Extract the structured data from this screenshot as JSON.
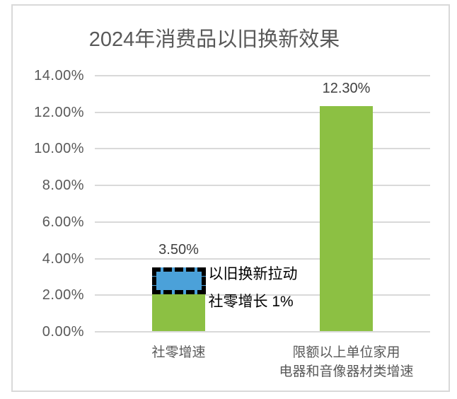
{
  "window": {
    "background": "#ffffff",
    "frame_border_color": "#d9d9d9"
  },
  "chart_data": {
    "type": "bar",
    "title": "2024年消费品以旧换新效果",
    "categories": [
      "社零增速",
      "限额以上单位家用电器和音像器材类增速"
    ],
    "category_lines": [
      [
        "社零增速"
      ],
      [
        "限额以上单位家用",
        "电器和音像器材类增速"
      ]
    ],
    "values": [
      3.5,
      12.3
    ],
    "data_labels": [
      "3.50%",
      "12.30%"
    ],
    "xlabel": "",
    "ylabel": "",
    "ylim": [
      0,
      14
    ],
    "y_tick_step": 2,
    "grid": true,
    "legend": "none",
    "bar_color": "#8cc043",
    "y_ticks": [
      {
        "value": 14,
        "label": "14.00%"
      },
      {
        "value": 12,
        "label": "12.00%"
      },
      {
        "value": 10,
        "label": "10.00%"
      },
      {
        "value": 8,
        "label": "8.00%"
      },
      {
        "value": 6,
        "label": "6.00%"
      },
      {
        "value": 4,
        "label": "4.00%"
      },
      {
        "value": 2,
        "label": "2.00%"
      },
      {
        "value": 0,
        "label": "0.00%"
      }
    ],
    "annotation": {
      "lines": [
        "以旧换新拉动",
        "社零增长 1%"
      ],
      "highlight_bar_index": 0,
      "highlight_from_value": 2.0,
      "highlight_to_value": 3.5,
      "highlight_fill": "#4ba1d9",
      "highlight_border": "#000000"
    },
    "colors": {
      "title_text": "#595959",
      "axis_text": "#595959",
      "data_label_text": "#404040",
      "annotation_text": "#000000",
      "gridline": "#d9d9d9",
      "frame_border": "#d9d9d9"
    }
  }
}
